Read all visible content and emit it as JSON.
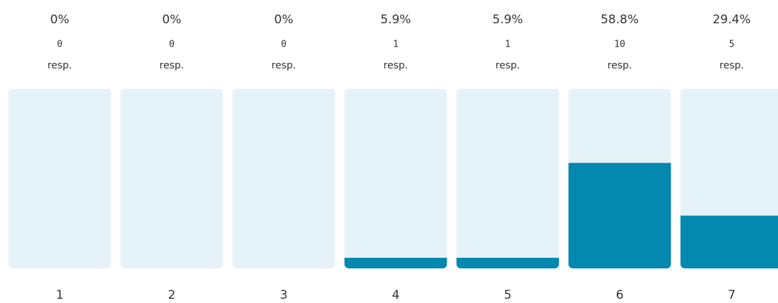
{
  "chart_data": {
    "type": "bar",
    "categories": [
      "1",
      "2",
      "3",
      "4",
      "5",
      "6",
      "7"
    ],
    "values": [
      0,
      0,
      0,
      5.9,
      5.9,
      58.8,
      29.4
    ],
    "value_labels": [
      "0%",
      "0%",
      "0%",
      "5.9%",
      "5.9%",
      "58.8%",
      "29.4%"
    ],
    "counts": [
      0,
      0,
      0,
      1,
      1,
      10,
      5
    ],
    "count_unit": "resp.",
    "color": "#0388b0",
    "track_color": "#e5f2f8",
    "ylim": [
      0,
      100
    ]
  }
}
